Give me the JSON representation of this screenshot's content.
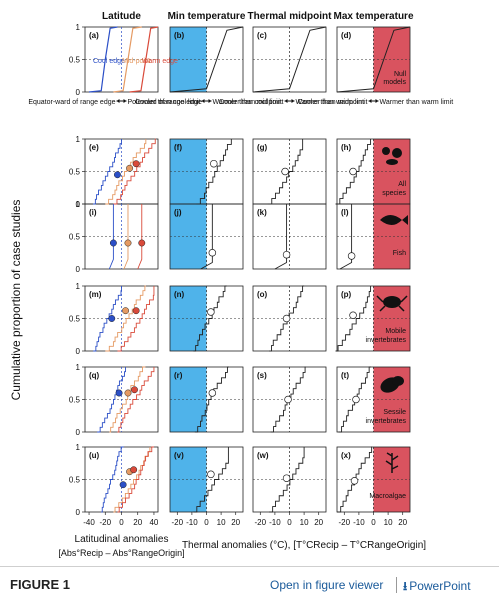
{
  "figure": {
    "column_titles": [
      "Latitude",
      "Min temperature",
      "Thermal midpoint",
      "Max temperature"
    ],
    "ylabel": "Cumulative proportion of case studies",
    "xlabel_lat": [
      "Latitudinal anomalies",
      "[Abs°Recip – Abs°RangeOrigin]"
    ],
    "xlabel_therm": "Thermal anomalies (°C), [T°CRecip – T°CRangeOrigin]",
    "y_ticks": [
      "0",
      "0.5",
      "1"
    ],
    "lat_ticks": [
      "-40",
      "-20",
      "0",
      "20",
      "40"
    ],
    "therm_ticks": [
      "-20",
      "-10",
      "0",
      "10",
      "20"
    ],
    "row_labels": [
      {
        "letters": [
          "(a)",
          "(b)",
          "(c)",
          "(d)"
        ],
        "group": "Null models"
      },
      {
        "letters": [
          "(e)",
          "(f)",
          "(g)",
          "(h)"
        ],
        "group": "All species"
      },
      {
        "letters": [
          "(i)",
          "(j)",
          "(k)",
          "(l)"
        ],
        "group": "Fish"
      },
      {
        "letters": [
          "(m)",
          "(n)",
          "(o)",
          "(p)"
        ],
        "group": "Mobile invertebrates"
      },
      {
        "letters": [
          "(q)",
          "(r)",
          "(s)",
          "(t)"
        ],
        "group": "Sessile invertebrates"
      },
      {
        "letters": [
          "(u)",
          "(v)",
          "(w)",
          "(x)"
        ],
        "group": "Macroalgae"
      }
    ],
    "null_legend": [
      "Cool edge",
      "Mid-point",
      "Warm edge"
    ],
    "arrow_labels": [
      [
        "Equator-ward of range edge",
        "Poleward of range edge"
      ],
      [
        "Cooler than cool limit",
        "Warmer than cool limit"
      ],
      [
        "Cooler than midpoint",
        "Warmer than midpoint"
      ],
      [
        "Cooler than warm limit",
        "Warmer than warm limit"
      ]
    ],
    "colors": {
      "cool": "#2b4fc7",
      "mid": "#e59a63",
      "warm": "#d94a3a",
      "blue_shade": "#4fb3ea",
      "red_shade": "#d9535f",
      "dashed": "#222222"
    }
  },
  "chart_data": [
    {
      "type": "line",
      "panel": "a",
      "x": [
        -45,
        45
      ],
      "ylim": [
        0,
        1
      ],
      "series": [
        {
          "name": "Cool edge",
          "values": [
            [
              -40,
              0
            ],
            [
              -25,
              0.02
            ],
            [
              -20,
              0.5
            ],
            [
              -14,
              0.98
            ],
            [
              -5,
              1
            ]
          ]
        },
        {
          "name": "Mid-point",
          "values": [
            [
              -10,
              0
            ],
            [
              2,
              0.02
            ],
            [
              8,
              0.5
            ],
            [
              14,
              0.98
            ],
            [
              25,
              1
            ]
          ]
        },
        {
          "name": "Warm edge",
          "values": [
            [
              10,
              0
            ],
            [
              24,
              0.02
            ],
            [
              30,
              0.5
            ],
            [
              36,
              0.98
            ],
            [
              45,
              1
            ]
          ]
        }
      ]
    },
    {
      "type": "line",
      "panel": "b",
      "xlim": [
        -25,
        25
      ],
      "series": [
        {
          "values": [
            [
              -25,
              0
            ],
            [
              0,
              0.05
            ],
            [
              7,
              0.5
            ],
            [
              14,
              0.95
            ],
            [
              25,
              1
            ]
          ]
        }
      ]
    },
    {
      "type": "line",
      "panel": "e",
      "series": [
        {
          "name": "Cool edge",
          "values": [
            [
              -35,
              0
            ],
            [
              -10,
              0.45
            ],
            [
              0,
              1
            ]
          ]
        },
        {
          "name": "Mid-point",
          "values": [
            [
              -20,
              0
            ],
            [
              10,
              0.55
            ],
            [
              30,
              1
            ]
          ]
        },
        {
          "name": "Warm edge",
          "values": [
            [
              -10,
              0
            ],
            [
              20,
              0.6
            ],
            [
              40,
              1
            ]
          ]
        }
      ]
    },
    {
      "type": "scatter",
      "panel": "e",
      "series": [
        {
          "name": "Cool edge",
          "values": [
            [
              -5,
              0.45
            ]
          ]
        },
        {
          "name": "Mid-point",
          "values": [
            [
              10,
              0.55
            ]
          ]
        },
        {
          "name": "Warm edge",
          "values": [
            [
              18,
              0.62
            ]
          ]
        }
      ]
    },
    {
      "type": "scatter",
      "panel": "i",
      "series": [
        {
          "name": "Cool edge",
          "values": [
            [
              -10,
              0.4
            ]
          ]
        },
        {
          "name": "Mid-point",
          "values": [
            [
              8,
              0.4
            ]
          ]
        },
        {
          "name": "Warm edge",
          "values": [
            [
              25,
              0.4
            ]
          ]
        }
      ]
    },
    {
      "type": "scatter",
      "panel": "m",
      "series": [
        {
          "name": "Cool edge",
          "values": [
            [
              -12,
              0.5
            ]
          ]
        },
        {
          "name": "Mid-point",
          "values": [
            [
              5,
              0.62
            ]
          ]
        },
        {
          "name": "Warm edge",
          "values": [
            [
              18,
              0.62
            ]
          ]
        }
      ]
    },
    {
      "type": "scatter",
      "panel": "q",
      "series": [
        {
          "name": "Cool edge",
          "values": [
            [
              -3,
              0.6
            ]
          ]
        },
        {
          "name": "Mid-point",
          "values": [
            [
              8,
              0.6
            ]
          ]
        },
        {
          "name": "Warm edge",
          "values": [
            [
              16,
              0.65
            ]
          ]
        }
      ]
    },
    {
      "type": "scatter",
      "panel": "u",
      "series": [
        {
          "name": "Cool edge",
          "values": [
            [
              2,
              0.42
            ]
          ]
        },
        {
          "name": "Mid-point",
          "values": [
            [
              10,
              0.62
            ]
          ]
        },
        {
          "name": "Warm edge",
          "values": [
            [
              15,
              0.65
            ]
          ]
        }
      ]
    },
    {
      "type": "scatter",
      "panel": "thermal-midpoints",
      "series": [
        {
          "name": "Min temperature",
          "values": [
            [
              5,
              0.62
            ],
            [
              4,
              0.25
            ],
            [
              3,
              0.6
            ],
            [
              4,
              0.6
            ],
            [
              3,
              0.58
            ]
          ]
        },
        {
          "name": "Thermal midpoint",
          "values": [
            [
              -3,
              0.5
            ],
            [
              -2,
              0.22
            ],
            [
              -2,
              0.5
            ],
            [
              -1,
              0.5
            ],
            [
              -2,
              0.52
            ]
          ]
        },
        {
          "name": "Max temperature",
          "values": [
            [
              -14,
              0.5
            ],
            [
              -15,
              0.2
            ],
            [
              -14,
              0.55
            ],
            [
              -12,
              0.5
            ],
            [
              -13,
              0.48
            ]
          ]
        }
      ]
    }
  ],
  "footer": {
    "figure_label": "FIGURE 1",
    "viewer_link": "Open in figure viewer",
    "powerpoint_link": "PowerPoint",
    "download_icon": "download-icon"
  }
}
